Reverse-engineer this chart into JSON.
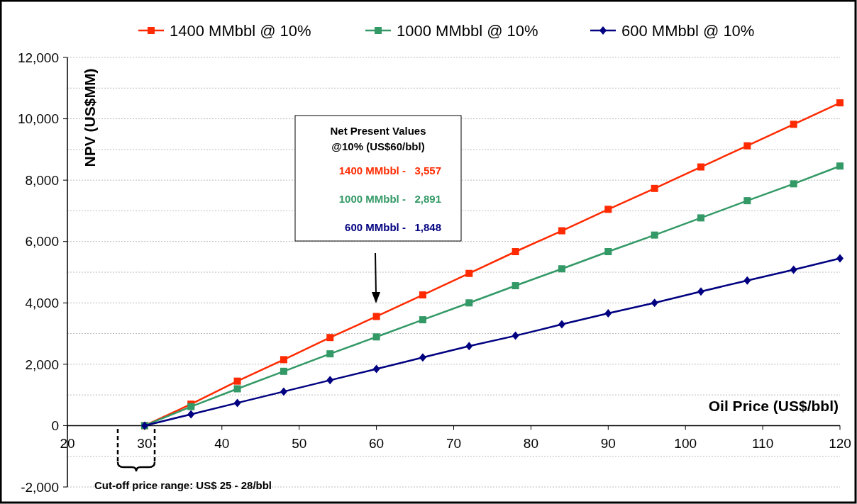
{
  "chart_data": {
    "type": "line",
    "xlabel": "Oil Price (US$/bbl)",
    "ylabel": "NPV (US$MM)",
    "x": [
      30,
      36,
      42,
      48,
      54,
      60,
      66,
      72,
      78,
      84,
      90,
      96,
      102,
      108,
      114,
      120
    ],
    "series": [
      {
        "name": "1400 MMbbl @ 10%",
        "color": "#ff2a00",
        "marker": "square",
        "values": [
          0,
          700,
          1450,
          2150,
          2870,
          3557,
          4260,
          4960,
          5670,
          6350,
          7050,
          7730,
          8430,
          9120,
          9820,
          10520
        ]
      },
      {
        "name": "1000 MMbbl @ 10%",
        "color": "#339966",
        "marker": "square",
        "values": [
          0,
          620,
          1200,
          1770,
          2340,
          2891,
          3450,
          4000,
          4560,
          5110,
          5670,
          6210,
          6770,
          7330,
          7880,
          8460
        ]
      },
      {
        "name": "600 MMbbl @ 10%",
        "color": "#000080",
        "marker": "diamond",
        "values": [
          0,
          370,
          740,
          1110,
          1480,
          1848,
          2220,
          2590,
          2930,
          3300,
          3660,
          4000,
          4370,
          4730,
          5080,
          5450
        ]
      }
    ],
    "xlim": [
      20,
      120
    ],
    "xticks": [
      20,
      30,
      40,
      50,
      60,
      70,
      80,
      90,
      100,
      110,
      120
    ],
    "ylim": [
      -2000,
      12000
    ],
    "yticks": [
      {
        "value": -2000,
        "label": "-2,000"
      },
      {
        "value": -1000,
        "label": null
      },
      0,
      {
        "value": 1000,
        "label": null
      },
      {
        "value": 2000,
        "label": "2,000"
      },
      {
        "value": 3000,
        "label": null
      },
      {
        "value": 4000,
        "label": "4,000"
      },
      {
        "value": 5000,
        "label": null
      },
      {
        "value": 6000,
        "label": "6,000"
      },
      {
        "value": 7000,
        "label": null
      },
      {
        "value": 8000,
        "label": "8,000"
      },
      {
        "value": 9000,
        "label": null
      },
      {
        "value": 10000,
        "label": "10,000"
      },
      {
        "value": 11000,
        "label": null
      },
      {
        "value": 12000,
        "label": "12,000"
      }
    ],
    "grid": "y",
    "legend": "top",
    "line_style": "solid",
    "annotations": [
      "Net Present Values",
      "@10% (US$60/bbl)",
      "1400 MMbbl -   3,557",
      "1000 MMbbl -   2,891",
      "600 MMbbl -   1,848",
      "Cut-off price range: US$ 25 - 28/bbl"
    ]
  }
}
